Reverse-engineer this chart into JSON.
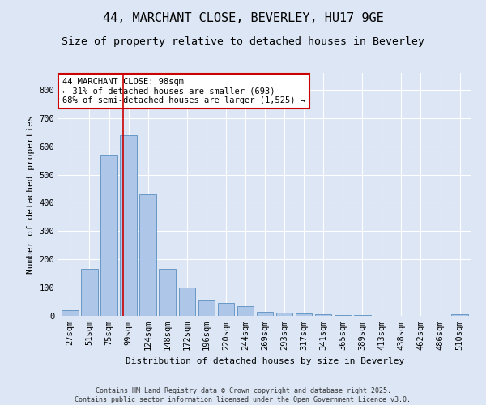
{
  "title": "44, MARCHANT CLOSE, BEVERLEY, HU17 9GE",
  "subtitle": "Size of property relative to detached houses in Beverley",
  "xlabel": "Distribution of detached houses by size in Beverley",
  "ylabel": "Number of detached properties",
  "categories": [
    "27sqm",
    "51sqm",
    "75sqm",
    "99sqm",
    "124sqm",
    "148sqm",
    "172sqm",
    "196sqm",
    "220sqm",
    "244sqm",
    "269sqm",
    "293sqm",
    "317sqm",
    "341sqm",
    "365sqm",
    "389sqm",
    "413sqm",
    "438sqm",
    "462sqm",
    "486sqm",
    "510sqm"
  ],
  "values": [
    20,
    165,
    570,
    640,
    430,
    165,
    100,
    58,
    45,
    35,
    15,
    12,
    8,
    5,
    4,
    2,
    1,
    1,
    0,
    0,
    5
  ],
  "bar_color": "#aec6e8",
  "bar_edge_color": "#5a8fc0",
  "vline_x_index": 2.72,
  "vline_color": "#cc0000",
  "annotation_text": "44 MARCHANT CLOSE: 98sqm\n← 31% of detached houses are smaller (693)\n68% of semi-detached houses are larger (1,525) →",
  "annotation_box_color": "#ffffff",
  "annotation_box_edge": "#cc0000",
  "ylim": [
    0,
    860
  ],
  "yticks": [
    0,
    100,
    200,
    300,
    400,
    500,
    600,
    700,
    800
  ],
  "background_color": "#dce6f5",
  "plot_bg_color": "#dce6f5",
  "grid_color": "#ffffff",
  "title_fontsize": 11,
  "subtitle_fontsize": 9.5,
  "tick_fontsize": 7.5,
  "label_fontsize": 8,
  "footer_text": "Contains HM Land Registry data © Crown copyright and database right 2025.\nContains public sector information licensed under the Open Government Licence v3.0."
}
